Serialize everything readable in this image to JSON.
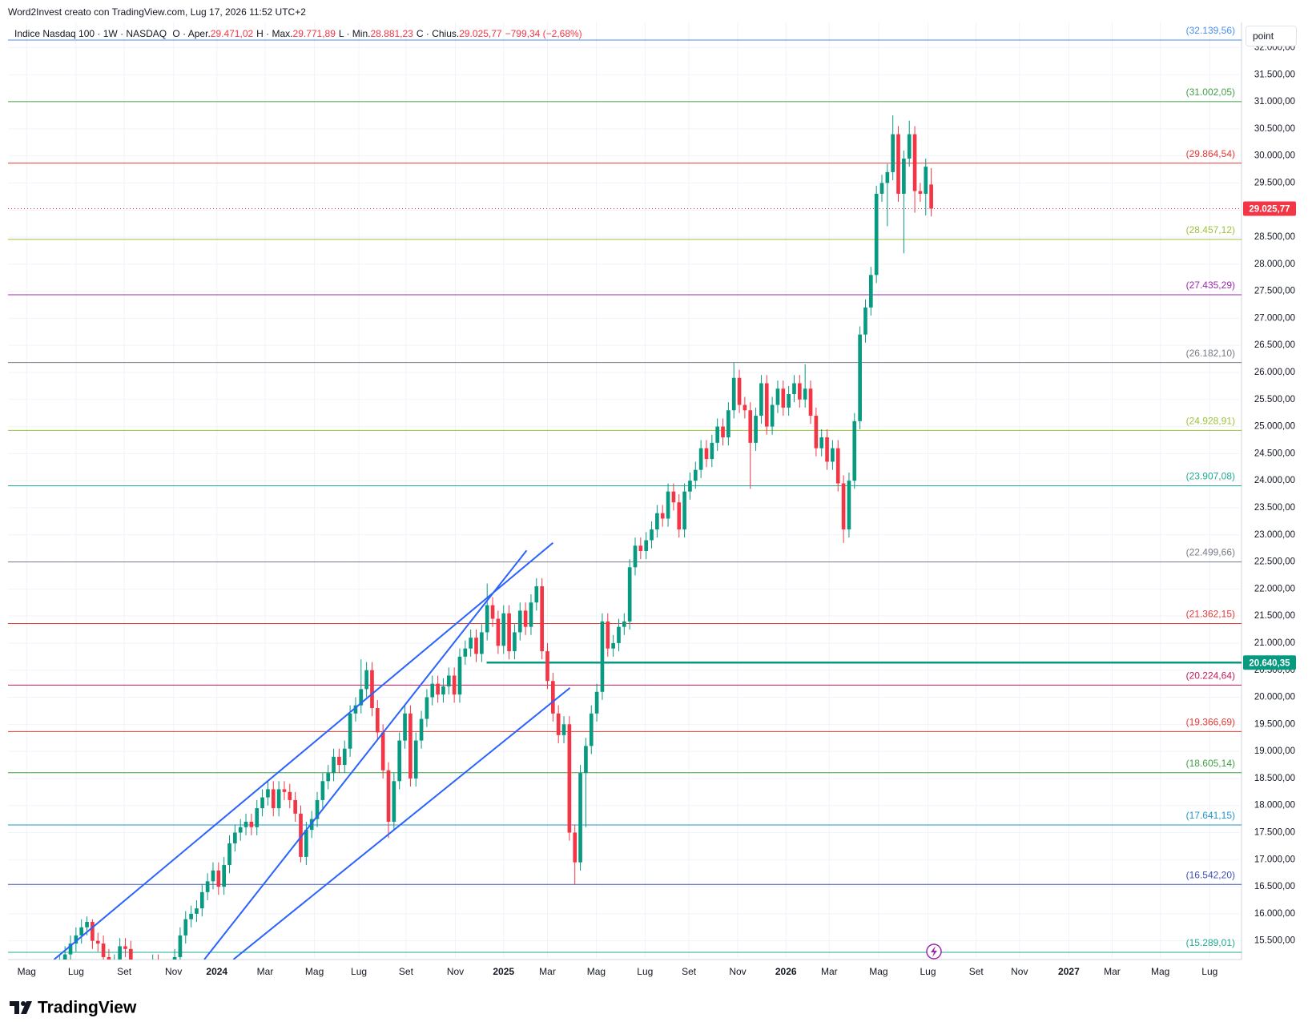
{
  "header": {
    "credit": "Word2Invest creato con TradingView.com, Lug 17, 2026 11:52 UTC+2",
    "symbol": "Indice Nasdaq 100 · 1W · NASDAQ",
    "ohlc": [
      {
        "label": "O · Aper.",
        "value": "29.471,02"
      },
      {
        "label": "H · Max.",
        "value": "29.771,89"
      },
      {
        "label": "L · Min.",
        "value": "28.881,23"
      },
      {
        "label": "C · Chius.",
        "value": "29.025,77"
      }
    ],
    "change": "−799,34 (−2,68%)",
    "scale_button": "point",
    "logo": "TradingView"
  },
  "chart_data": {
    "type": "candlestick",
    "up_color": "#089981",
    "down_color": "#f23645",
    "grid": true,
    "xlim": [
      -8.4,
      216.6
    ],
    "ylim": [
      15155,
      32465
    ],
    "xticks": [
      {
        "value": -5.0,
        "label": "Mag"
      },
      {
        "value": 4.0,
        "label": "Lug"
      },
      {
        "value": 12.8,
        "label": "Set"
      },
      {
        "value": 21.8,
        "label": "Nov"
      },
      {
        "value": 29.7,
        "label": "2024",
        "major": true
      },
      {
        "value": 38.5,
        "label": "Mar"
      },
      {
        "value": 47.5,
        "label": "Mag"
      },
      {
        "value": 55.6,
        "label": "Lug"
      },
      {
        "value": 64.2,
        "label": "Set"
      },
      {
        "value": 73.2,
        "label": "Nov"
      },
      {
        "value": 82.0,
        "label": "2025",
        "major": true
      },
      {
        "value": 90.0,
        "label": "Mar"
      },
      {
        "value": 98.9,
        "label": "Mag"
      },
      {
        "value": 107.8,
        "label": "Lug"
      },
      {
        "value": 115.8,
        "label": "Set"
      },
      {
        "value": 124.7,
        "label": "Nov"
      },
      {
        "value": 133.5,
        "label": "2026",
        "major": true
      },
      {
        "value": 141.4,
        "label": "Mar"
      },
      {
        "value": 150.4,
        "label": "Mag"
      },
      {
        "value": 159.4,
        "label": "Lug"
      },
      {
        "value": 168.2,
        "label": "Set"
      },
      {
        "value": 176.1,
        "label": "Nov"
      },
      {
        "value": 185.1,
        "label": "2027",
        "major": true
      },
      {
        "value": 193.0,
        "label": "Mar"
      },
      {
        "value": 201.8,
        "label": "Mag"
      },
      {
        "value": 210.8,
        "label": "Lug"
      }
    ],
    "yticks": [
      {
        "value": 15500,
        "label": "15.500,00"
      },
      {
        "value": 16000,
        "label": "16.000,00"
      },
      {
        "value": 16500,
        "label": "16.500,00"
      },
      {
        "value": 17000,
        "label": "17.000,00"
      },
      {
        "value": 17500,
        "label": "17.500,00"
      },
      {
        "value": 18000,
        "label": "18.000,00"
      },
      {
        "value": 18500,
        "label": "18.500,00"
      },
      {
        "value": 19000,
        "label": "19.000,00"
      },
      {
        "value": 19500,
        "label": "19.500,00"
      },
      {
        "value": 20000,
        "label": "20.000,00"
      },
      {
        "value": 20500,
        "label": "20.500,00"
      },
      {
        "value": 21000,
        "label": "21.000,00"
      },
      {
        "value": 21500,
        "label": "21.500,00"
      },
      {
        "value": 22000,
        "label": "22.000,00"
      },
      {
        "value": 22500,
        "label": "22.500,00"
      },
      {
        "value": 23000,
        "label": "23.000,00"
      },
      {
        "value": 23500,
        "label": "23.500,00"
      },
      {
        "value": 24000,
        "label": "24.000,00"
      },
      {
        "value": 24500,
        "label": "24.500,00"
      },
      {
        "value": 25000,
        "label": "25.000,00"
      },
      {
        "value": 25500,
        "label": "25.500,00"
      },
      {
        "value": 26000,
        "label": "26.000,00"
      },
      {
        "value": 26500,
        "label": "26.500,00"
      },
      {
        "value": 27000,
        "label": "27.000,00"
      },
      {
        "value": 27500,
        "label": "27.500,00"
      },
      {
        "value": 28000,
        "label": "28.000,00"
      },
      {
        "value": 28500,
        "label": "28.500,00"
      },
      {
        "value": 29000,
        "label": "29.000,00"
      },
      {
        "value": 29500,
        "label": "29.500,00"
      },
      {
        "value": 30000,
        "label": "30.000,00"
      },
      {
        "value": 30500,
        "label": "30.500,00"
      },
      {
        "value": 31000,
        "label": "31.000,00"
      },
      {
        "value": 31500,
        "label": "31.500,00"
      },
      {
        "value": 32000,
        "label": "32.000,00"
      }
    ],
    "open": [
      14800,
      14900,
      15100,
      15250,
      15450,
      15600,
      15750,
      15850,
      15500,
      15450,
      15200,
      14900,
      15100,
      15400,
      15350,
      15000,
      14700,
      14800,
      14900,
      15100,
      14700,
      14400,
      14300,
      15200,
      15600,
      15900,
      16000,
      16100,
      16400,
      16600,
      16800,
      16500,
      16900,
      17300,
      17500,
      17600,
      17700,
      17600,
      17950,
      18150,
      18300,
      17950,
      18300,
      18250,
      18100,
      17850,
      17050,
      17550,
      17750,
      18100,
      18450,
      18600,
      18900,
      18750,
      19050,
      19700,
      19850,
      20150,
      20500,
      19800,
      19350,
      18650,
      17700,
      18450,
      19200,
      19700,
      18500,
      19200,
      19600,
      20000,
      20250,
      20050,
      20200,
      20400,
      20050,
      20750,
      20900,
      21100,
      20800,
      21200,
      21700,
      21450,
      20950,
      21550,
      20850,
      21200,
      21600,
      21300,
      21750,
      22050,
      20850,
      20300,
      19700,
      19300,
      19500,
      17500,
      16950,
      18600,
      19100,
      19700,
      20100,
      21400,
      20900,
      21000,
      21300,
      21400,
      22400,
      22800,
      22700,
      22900,
      23100,
      23400,
      23300,
      23800,
      23600,
      23100,
      23800,
      24000,
      24200,
      24600,
      24400,
      24700,
      25000,
      24800,
      25300,
      25900,
      25400,
      25300,
      24700,
      25200,
      25800,
      25000,
      25400,
      25700,
      25350,
      25600,
      25800,
      25500,
      25700,
      25200,
      24600,
      24800,
      24350,
      24600,
      23950,
      23100,
      24000,
      25100,
      26700,
      27200,
      27800,
      29300,
      29500,
      29700,
      30400,
      29300,
      29950,
      30400,
      29350,
      29300,
      29471.02
    ],
    "high": [
      15050,
      15250,
      15400,
      15600,
      15750,
      15900,
      15950,
      15900,
      15650,
      15600,
      15350,
      15250,
      15550,
      15550,
      15500,
      15150,
      14950,
      15050,
      15250,
      15250,
      14850,
      14550,
      15350,
      15750,
      16050,
      16150,
      16250,
      16550,
      16750,
      16950,
      16950,
      17050,
      17450,
      17650,
      17750,
      17850,
      17850,
      18100,
      18300,
      18450,
      18450,
      18450,
      18450,
      18400,
      18250,
      18000,
      17700,
      17900,
      18250,
      18600,
      18750,
      19050,
      19050,
      19200,
      19850,
      20000,
      20700,
      20650,
      20650,
      19950,
      19500,
      18800,
      18600,
      19350,
      19850,
      19850,
      19350,
      19750,
      20150,
      20400,
      20400,
      20350,
      20550,
      20550,
      20900,
      21050,
      21250,
      21250,
      21350,
      22100,
      21850,
      21600,
      21700,
      21700,
      21350,
      21750,
      21750,
      21900,
      22200,
      22200,
      21000,
      20450,
      19850,
      19650,
      19650,
      17650,
      18750,
      19250,
      19850,
      20250,
      21550,
      21550,
      21150,
      21450,
      21550,
      22550,
      22950,
      22950,
      23050,
      23250,
      23550,
      23550,
      23950,
      23950,
      23750,
      23950,
      24150,
      24350,
      24750,
      24750,
      24850,
      25150,
      25150,
      25450,
      26180,
      26050,
      25550,
      25450,
      25350,
      25950,
      25950,
      25550,
      25850,
      25850,
      25750,
      25950,
      25950,
      26150,
      25850,
      25350,
      24950,
      24950,
      24750,
      24750,
      24100,
      24150,
      25250,
      26850,
      27350,
      27950,
      29450,
      29650,
      29850,
      30750,
      30550,
      30100,
      30650,
      30550,
      29500,
      29950,
      29771.89
    ],
    "low": [
      14650,
      14750,
      14950,
      15100,
      15300,
      15450,
      15600,
      15350,
      15300,
      15050,
      14750,
      14750,
      14950,
      15200,
      14850,
      14550,
      14550,
      14650,
      14750,
      14550,
      14250,
      14150,
      14150,
      15050,
      15450,
      15750,
      15850,
      15950,
      16250,
      16450,
      16350,
      16350,
      16750,
      17150,
      17350,
      17450,
      17450,
      17450,
      17800,
      18000,
      17800,
      17800,
      18100,
      17950,
      17700,
      16950,
      16900,
      17400,
      17600,
      17950,
      18300,
      18450,
      18600,
      18600,
      18900,
      19550,
      19700,
      20000,
      19650,
      19200,
      18500,
      17400,
      17550,
      18300,
      19050,
      18350,
      18350,
      19050,
      19450,
      19850,
      19900,
      19900,
      20050,
      19900,
      19900,
      20600,
      20750,
      20650,
      20650,
      21050,
      21300,
      20800,
      20800,
      20700,
      20700,
      21050,
      21150,
      21150,
      21600,
      20700,
      20150,
      19550,
      19150,
      19150,
      17350,
      16540,
      16800,
      17600,
      18950,
      19550,
      19950,
      20750,
      20750,
      20850,
      21150,
      21250,
      22250,
      22550,
      22550,
      22750,
      22950,
      23150,
      23150,
      23450,
      22950,
      22950,
      23650,
      23850,
      24050,
      24250,
      24250,
      24550,
      24650,
      24650,
      25150,
      25250,
      25150,
      23850,
      24550,
      25050,
      24850,
      24850,
      25250,
      25200,
      25200,
      25450,
      25350,
      25350,
      25050,
      24450,
      24450,
      24200,
      24200,
      23800,
      22850,
      22950,
      23850,
      24950,
      26550,
      27050,
      27650,
      29150,
      28700,
      29550,
      29150,
      28200,
      29800,
      28950,
      29150,
      28900,
      28881.23
    ],
    "close": [
      14900,
      15100,
      15250,
      15450,
      15600,
      15750,
      15850,
      15500,
      15450,
      15200,
      14900,
      15100,
      15400,
      15350,
      15000,
      14700,
      14800,
      14900,
      15100,
      14700,
      14400,
      14300,
      15200,
      15600,
      15900,
      16000,
      16100,
      16400,
      16600,
      16800,
      16500,
      16900,
      17300,
      17500,
      17600,
      17700,
      17600,
      17950,
      18150,
      18300,
      17950,
      18300,
      18250,
      18100,
      17850,
      17050,
      17550,
      17750,
      18100,
      18450,
      18600,
      18900,
      18750,
      19050,
      19700,
      19850,
      20150,
      20500,
      19800,
      19350,
      18650,
      17700,
      18450,
      19200,
      19700,
      18500,
      19200,
      19600,
      20000,
      20250,
      20050,
      20200,
      20400,
      20050,
      20750,
      20900,
      21100,
      20800,
      21200,
      21700,
      21450,
      20950,
      21550,
      20850,
      21200,
      21600,
      21300,
      21750,
      22050,
      20850,
      20300,
      19700,
      19300,
      19500,
      17500,
      16950,
      18600,
      19100,
      19700,
      20100,
      21400,
      20900,
      21000,
      21300,
      21400,
      22400,
      22800,
      22700,
      22900,
      23100,
      23400,
      23300,
      23800,
      23600,
      23100,
      23800,
      24000,
      24200,
      24600,
      24400,
      24700,
      25000,
      24800,
      25300,
      25900,
      25400,
      25300,
      24700,
      25200,
      25800,
      25000,
      25400,
      25700,
      25350,
      25600,
      25800,
      25500,
      25700,
      25200,
      24600,
      24800,
      24350,
      24600,
      23950,
      23100,
      24000,
      25100,
      26700,
      27200,
      27800,
      29300,
      29500,
      29700,
      30400,
      29300,
      29950,
      30400,
      29350,
      29300,
      29800,
      29025.77
    ],
    "levels": [
      {
        "value": 32139.56,
        "label": "(32.139,56)",
        "color": "#4a8ff0"
      },
      {
        "value": 31002.05,
        "label": "(31.002,05)",
        "color": "#43a047"
      },
      {
        "value": 29864.54,
        "label": "(29.864,54)",
        "color": "#e53935"
      },
      {
        "value": 28457.12,
        "label": "(28.457,12)",
        "color": "#9cc33b"
      },
      {
        "value": 27435.29,
        "label": "(27.435,29)",
        "color": "#9c27b0"
      },
      {
        "value": 26182.1,
        "label": "(26.182,10)",
        "color": "#787b86"
      },
      {
        "value": 24928.91,
        "label": "(24.928,91)",
        "color": "#9cc33b"
      },
      {
        "value": 23907.08,
        "label": "(23.907,08)",
        "color": "#22ab94"
      },
      {
        "value": 22499.66,
        "label": "(22.499,66)",
        "color": "#787b86"
      },
      {
        "value": 21362.15,
        "label": "(21.362,15)",
        "color": "#e53935"
      },
      {
        "value": 20224.64,
        "label": "(20.224,64)",
        "color": "#c2185b"
      },
      {
        "value": 19366.69,
        "label": "(19.366,69)",
        "color": "#e53935"
      },
      {
        "value": 18605.14,
        "label": "(18.605,14)",
        "color": "#43a047"
      },
      {
        "value": 17641.15,
        "label": "(17.641,15)",
        "color": "#2196c9"
      },
      {
        "value": 16542.2,
        "label": "(16.542,20)",
        "color": "#3f51b5"
      },
      {
        "value": 15289.01,
        "label": "(15.289,01)",
        "color": "#22ab94"
      }
    ],
    "last_price": {
      "value": 29025.77,
      "label": "29.025,77",
      "color": "#f23645"
    },
    "support": {
      "value": 20640.35,
      "label": "20.640,35",
      "color": "#089981",
      "from_x": 78.9
    },
    "trendlines": [
      {
        "x": [
          0,
          91
        ],
        "y": [
          15155,
          22852
        ]
      },
      {
        "x": [
          27.4,
          86.2
        ],
        "y": [
          15155,
          22711
        ]
      },
      {
        "x": [
          32.7,
          94.1
        ],
        "y": [
          15155,
          20172
        ]
      }
    ],
    "trendline_color": "#2962ff"
  }
}
